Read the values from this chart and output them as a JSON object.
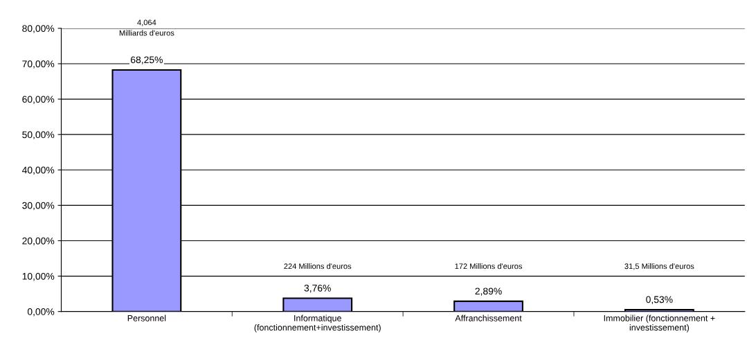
{
  "chart_data": {
    "type": "bar",
    "categories": [
      "Personnel",
      "Informatique\n(fonctionnement+investissement)",
      "Affranchissement",
      "Immobilier (fonctionnement +\ninvestissement)"
    ],
    "values": [
      68.25,
      3.76,
      2.89,
      0.53
    ],
    "value_labels": [
      "68,25%",
      "3,76%",
      "2,89%",
      "0,53%"
    ],
    "color": "#9999ff",
    "ylim": [
      0,
      80
    ],
    "yticks": [
      {
        "value": 0,
        "label": "0,00%"
      },
      {
        "value": 10,
        "label": "10,00%"
      },
      {
        "value": 20,
        "label": "20,00%"
      },
      {
        "value": 30,
        "label": "30,00%"
      },
      {
        "value": 40,
        "label": "40,00%"
      },
      {
        "value": 50,
        "label": "50,00%"
      },
      {
        "value": 60,
        "label": "60,00%"
      },
      {
        "value": 70,
        "label": "70,00%"
      },
      {
        "value": 80,
        "label": "80,00%"
      }
    ],
    "grid": "y",
    "annotations": [
      "4,064\nMilliards d'euros",
      "224 Millions d'euros",
      "172 Millions d'euros",
      "31,5 Millions d'euros"
    ]
  }
}
